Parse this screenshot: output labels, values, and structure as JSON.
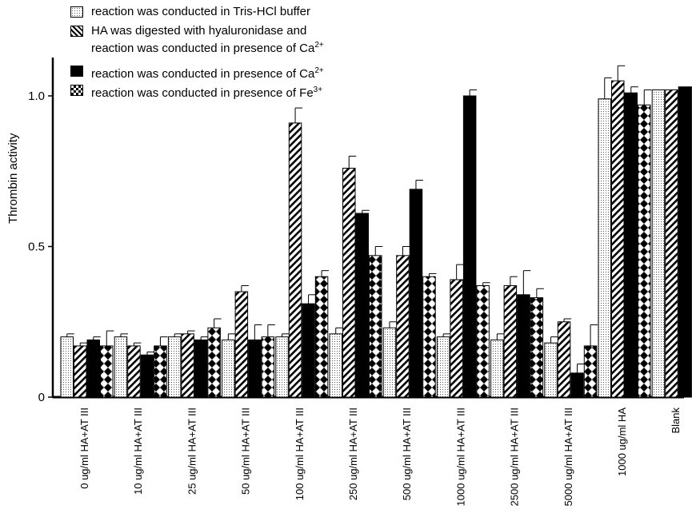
{
  "chart_data": {
    "type": "bar",
    "ylabel": "Thrombin activity",
    "xlabel": "",
    "ylim": [
      0,
      1.0
    ],
    "yticks": [
      "0",
      "0.5",
      "1.0"
    ],
    "yticks_values": [
      0,
      0.5,
      1.0
    ],
    "legend_position": "top-left",
    "categories": [
      "0 ug/ml HA+AT III",
      "10 ug/ml HA+AT III",
      "25 ug/ml HA+AT III",
      "50 ug/ml HA+AT III",
      "100 ug/ml HA+AT III",
      "250 ug/ml HA+AT III",
      "500 ug/ml HA+AT III",
      "1000 ug/ml HA+AT III",
      "2500 ug/ml HA+AT III",
      "5000 ug/ml HA+AT III",
      "1000 ug/ml HA",
      "Blank"
    ],
    "series": [
      {
        "name": "reaction was conducted in Tris-HCl buffer",
        "pattern": "dots",
        "values": [
          0.2,
          0.2,
          0.2,
          0.19,
          0.2,
          0.21,
          0.23,
          0.2,
          0.19,
          0.18,
          0.99,
          1.02
        ],
        "errors": [
          0.01,
          0.01,
          0.01,
          0.02,
          0.01,
          0.02,
          0.02,
          0.01,
          0.02,
          0.02,
          0.07,
          0.0
        ]
      },
      {
        "name": "HA was digested with hyaluronidase and reaction was conducted in presence of Ca2+",
        "pattern": "hatch",
        "values": [
          0.17,
          0.17,
          0.21,
          0.35,
          0.91,
          0.76,
          0.47,
          0.39,
          0.37,
          0.25,
          1.05,
          1.02
        ],
        "errors": [
          0.01,
          0.01,
          0.01,
          0.02,
          0.05,
          0.04,
          0.03,
          0.05,
          0.03,
          0.01,
          0.05,
          0.0
        ]
      },
      {
        "name": "reaction was conducted in presence of Ca2+",
        "pattern": "solid",
        "values": [
          0.19,
          0.14,
          0.19,
          0.19,
          0.31,
          0.61,
          0.69,
          1.0,
          0.34,
          0.08,
          1.01,
          1.03
        ],
        "errors": [
          0.01,
          0.01,
          0.01,
          0.05,
          0.03,
          0.01,
          0.03,
          0.02,
          0.08,
          0.03,
          0.02,
          0.0
        ]
      },
      {
        "name": "reaction was conducted in presence of Fe3+",
        "pattern": "diamonds",
        "values": [
          0.17,
          0.17,
          0.23,
          0.2,
          0.4,
          0.47,
          0.4,
          0.37,
          0.33,
          0.17,
          0.97,
          1.03
        ],
        "errors": [
          0.05,
          0.03,
          0.03,
          0.04,
          0.02,
          0.03,
          0.01,
          0.01,
          0.03,
          0.07,
          0.05,
          0.0
        ]
      }
    ]
  },
  "legend": {
    "items": [
      {
        "text": "reaction was conducted in Tris-HCl buffer"
      },
      {
        "text_line1": "HA was digested with hyaluronidase and",
        "text_line2": "reaction was conducted in presence of Ca",
        "sup": "2+"
      },
      {
        "text": "reaction was conducted in presence of Ca",
        "sup": "2+"
      },
      {
        "text": "reaction was conducted in presence of Fe",
        "sup": "3+"
      }
    ]
  }
}
